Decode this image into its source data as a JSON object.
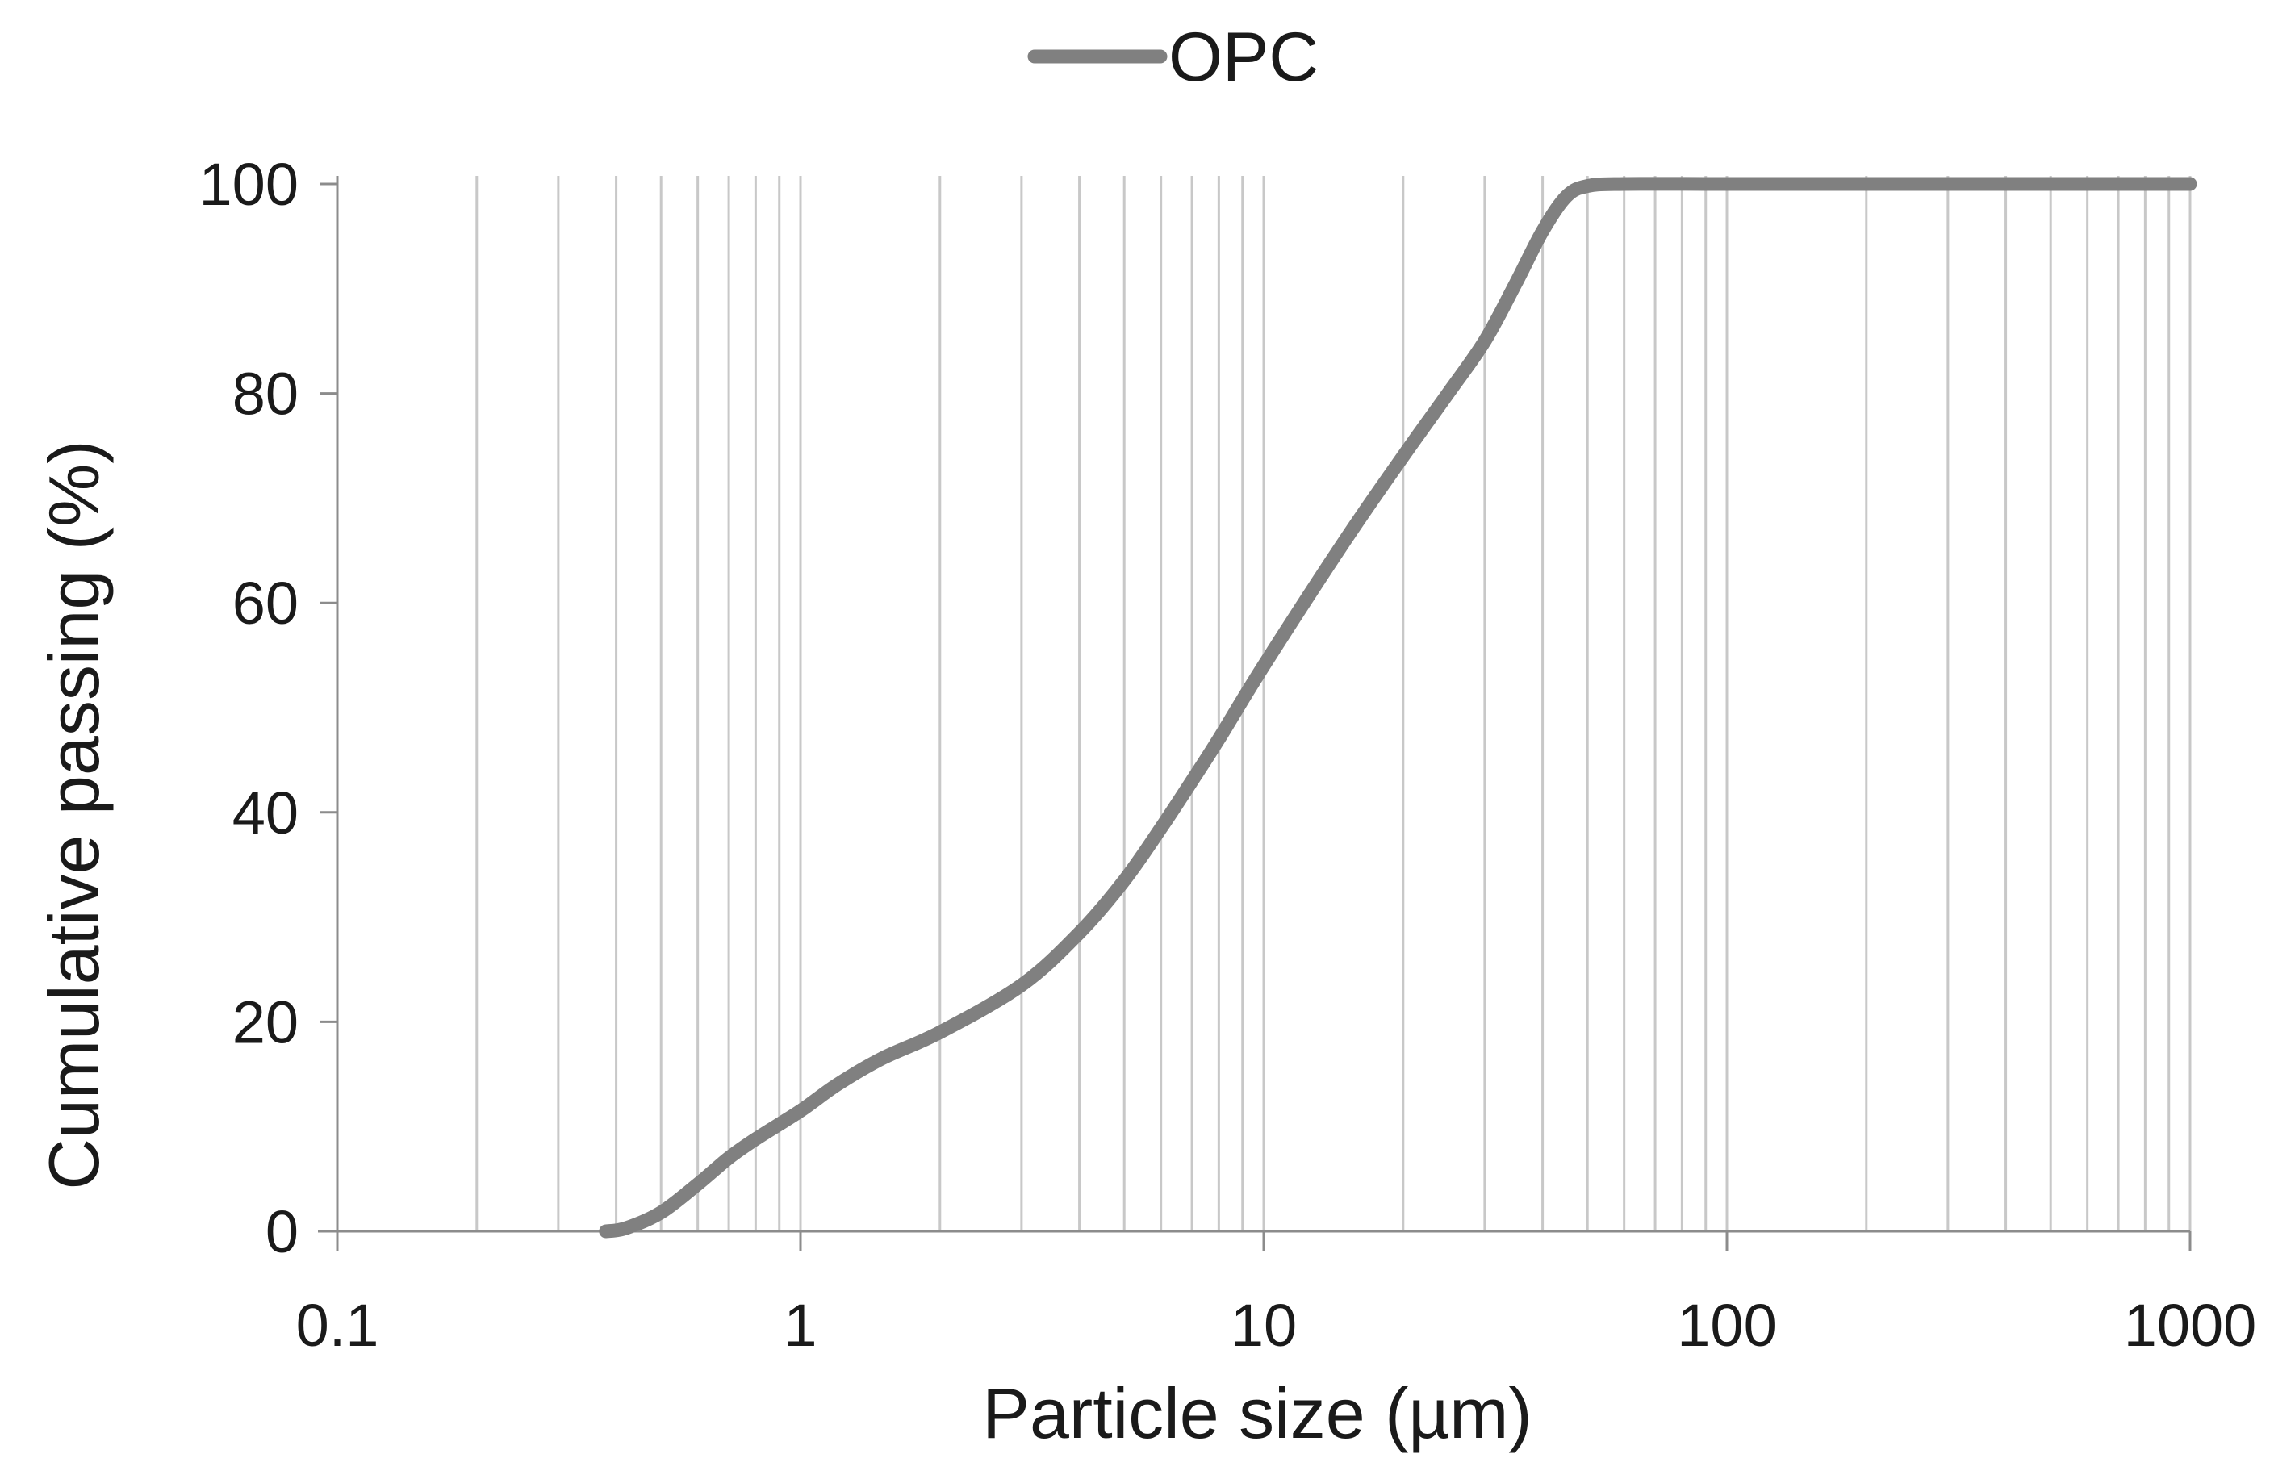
{
  "chart_data": {
    "type": "line",
    "title": "",
    "xlabel": "Particle size (µm)",
    "ylabel": "Cumulative passing (%)",
    "x_scale": "log",
    "xlim": [
      0.1,
      1000
    ],
    "ylim": [
      0,
      100
    ],
    "x_ticks": [
      0.1,
      1,
      10,
      100,
      1000
    ],
    "x_tick_labels": [
      "0.1",
      "1",
      "10",
      "100",
      "1000"
    ],
    "y_ticks": [
      0,
      20,
      40,
      60,
      80,
      100
    ],
    "y_tick_labels": [
      "0",
      "20",
      "40",
      "60",
      "80",
      "100"
    ],
    "grid": "vertical minor and major lines on x",
    "legend_position": "top-center",
    "series": [
      {
        "name": "OPC",
        "color": "#808080",
        "x": [
          0.38,
          0.42,
          0.5,
          0.6,
          0.7,
          0.8,
          1,
          1.2,
          1.5,
          2,
          3,
          4,
          5,
          6,
          7,
          8,
          10,
          15,
          20,
          25,
          30,
          35,
          40,
          45,
          50,
          60,
          100,
          200,
          500,
          1000
        ],
        "y": [
          0,
          0.3,
          1.8,
          4.5,
          7,
          8.8,
          11.5,
          14,
          16.5,
          19,
          23.5,
          28.5,
          33.5,
          38.5,
          43,
          47,
          54,
          66,
          74,
          80,
          85,
          90.5,
          95.5,
          98.8,
          99.8,
          100,
          100,
          100,
          100,
          100
        ]
      }
    ]
  }
}
